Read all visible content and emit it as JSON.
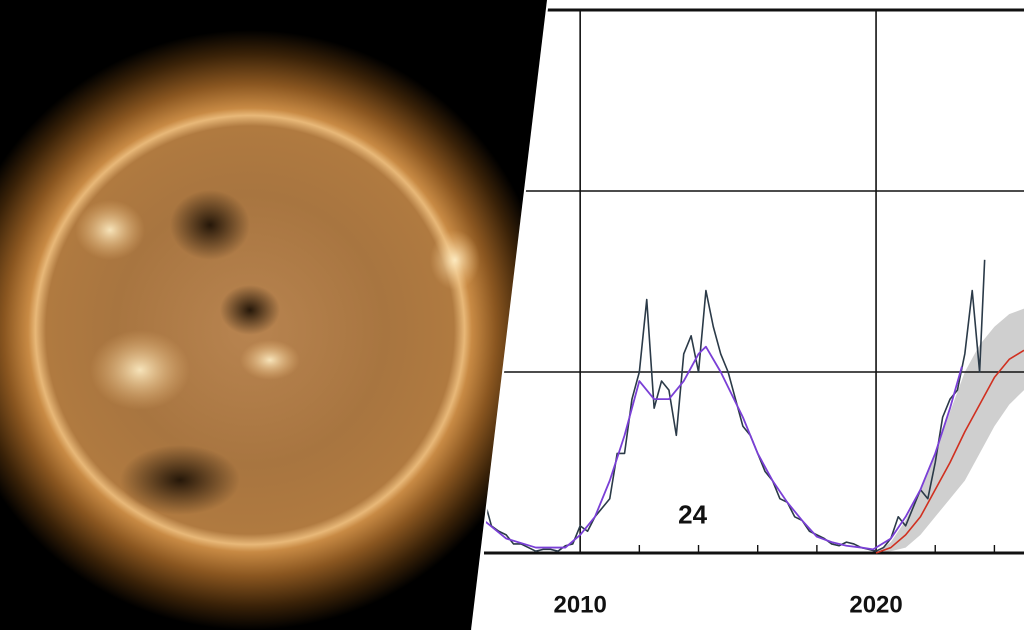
{
  "chart_data": {
    "type": "line",
    "xlim": [
      2006.75,
      2025.0
    ],
    "ylim": [
      0,
      300
    ],
    "xticks": [
      2010,
      2020
    ],
    "minor_xticks": [
      2012,
      2014,
      2016,
      2018,
      2022,
      2024
    ],
    "yticks": [
      0,
      100,
      200,
      300
    ],
    "grid": true,
    "annotations": [
      {
        "text": "24",
        "x": 2013.8,
        "y": 20
      }
    ],
    "band": {
      "color": "#cfcfcf",
      "x": [
        2020.0,
        2020.5,
        2021.0,
        2021.5,
        2022.0,
        2022.5,
        2023.0,
        2023.5,
        2024.0,
        2024.5,
        2025.0
      ],
      "upper": [
        0,
        6,
        18,
        35,
        55,
        78,
        100,
        115,
        125,
        132,
        135
      ],
      "lower": [
        0,
        1,
        3,
        10,
        20,
        30,
        40,
        55,
        70,
        82,
        90
      ]
    },
    "series": [
      {
        "color": "#2b3a48",
        "width": 1.6,
        "x": [
          2006.75,
          2007.0,
          2007.25,
          2007.5,
          2007.75,
          2008.0,
          2008.25,
          2008.5,
          2008.75,
          2009.0,
          2009.25,
          2009.5,
          2009.75,
          2010.0,
          2010.25,
          2010.5,
          2010.75,
          2011.0,
          2011.25,
          2011.5,
          2011.75,
          2012.0,
          2012.25,
          2012.5,
          2012.75,
          2013.0,
          2013.25,
          2013.5,
          2013.75,
          2014.0,
          2014.25,
          2014.5,
          2014.75,
          2015.0,
          2015.25,
          2015.5,
          2015.75,
          2016.0,
          2016.25,
          2016.5,
          2016.75,
          2017.0,
          2017.25,
          2017.5,
          2017.75,
          2018.0,
          2018.25,
          2018.5,
          2018.75,
          2019.0,
          2019.25,
          2019.5,
          2019.75,
          2020.0,
          2020.25,
          2020.5,
          2020.75,
          2021.0,
          2021.25,
          2021.5,
          2021.75,
          2022.0,
          2022.25,
          2022.5,
          2022.75,
          2023.0,
          2023.25,
          2023.5,
          2023.67
        ],
        "values": [
          30,
          15,
          12,
          10,
          5,
          5,
          3,
          1,
          2,
          2,
          1,
          4,
          5,
          15,
          12,
          20,
          25,
          30,
          55,
          55,
          85,
          100,
          140,
          80,
          95,
          90,
          65,
          110,
          120,
          100,
          145,
          125,
          110,
          100,
          85,
          70,
          65,
          55,
          45,
          40,
          30,
          28,
          20,
          18,
          12,
          10,
          8,
          5,
          4,
          6,
          5,
          3,
          2,
          1,
          3,
          8,
          20,
          15,
          25,
          35,
          30,
          50,
          75,
          85,
          90,
          110,
          145,
          100,
          162
        ]
      },
      {
        "color": "#7a3fd6",
        "width": 1.8,
        "x": [
          2006.75,
          2007.5,
          2008.5,
          2009.5,
          2010.0,
          2010.5,
          2011.0,
          2011.5,
          2012.0,
          2012.5,
          2013.0,
          2013.5,
          2014.0,
          2014.25,
          2014.75,
          2015.5,
          2016.0,
          2016.5,
          2017.0,
          2017.5,
          2018.0,
          2018.5,
          2019.0,
          2019.5,
          2019.9,
          2020.5,
          2021.0,
          2021.5,
          2022.0,
          2022.5,
          2022.9
        ],
        "values": [
          18,
          8,
          3,
          3,
          10,
          20,
          40,
          65,
          95,
          85,
          85,
          95,
          110,
          114,
          100,
          75,
          55,
          40,
          28,
          18,
          9,
          6,
          4,
          3,
          2,
          8,
          20,
          35,
          55,
          80,
          103
        ]
      },
      {
        "color": "#d03020",
        "width": 1.6,
        "x": [
          2020.0,
          2020.5,
          2021.0,
          2021.5,
          2022.0,
          2022.5,
          2023.0,
          2023.5,
          2024.0,
          2024.5,
          2025.0
        ],
        "values": [
          0,
          3,
          10,
          20,
          35,
          50,
          67,
          82,
          97,
          107,
          112
        ]
      }
    ]
  }
}
